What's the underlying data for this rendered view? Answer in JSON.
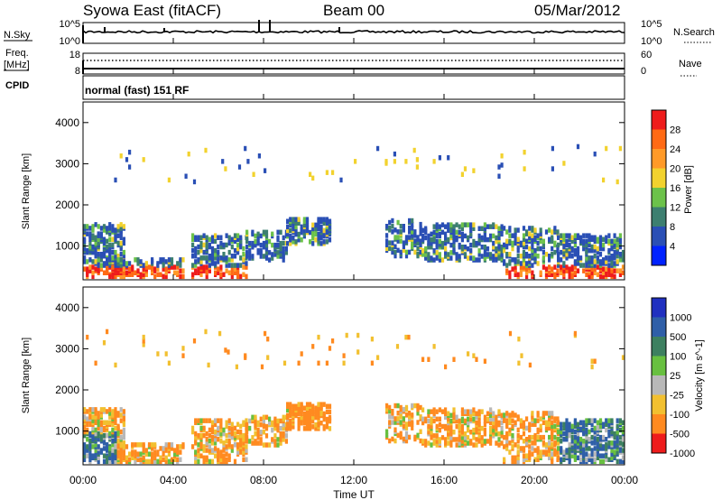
{
  "header": {
    "station": "Syowa East (fitACF)",
    "beam": "Beam 00",
    "date": "05/Mar/2012"
  },
  "status_panels": {
    "nsky_label": "N.Sky",
    "nsky_top": "10^5",
    "nsky_bottom": "10^0",
    "nsearch_label": "N.Search",
    "nsearch_top": "10^5",
    "nsearch_bottom": "10^0",
    "freq_label_1": "Freq.",
    "freq_label_2": "[MHz]",
    "freq_top": "18",
    "freq_bottom": "8",
    "nave_label": "Nave",
    "nave_top": "60",
    "nave_bottom": "0",
    "cpid_label": "CPID",
    "cpid_text": "normal (fast) 151 RF"
  },
  "chart_data": [
    {
      "type": "heatmap",
      "panel": "power",
      "ylabel": "Slant Range [km]",
      "yticks": [
        "1000",
        "2000",
        "3000",
        "4000"
      ],
      "ylim": [
        180,
        4500
      ],
      "colorbar_label": "Power [dB]",
      "colorbar_ticks": [
        "4",
        "8",
        "12",
        "16",
        "20",
        "24",
        "28"
      ],
      "colors": [
        "#0022ff",
        "#2a4fb5",
        "#3d7f70",
        "#6cc24a",
        "#f2d22e",
        "#ff9a28",
        "#ff6a14",
        "#ee1c1c"
      ]
    },
    {
      "type": "heatmap",
      "panel": "velocity",
      "ylabel": "Slant Range [km]",
      "yticks": [
        "1000",
        "2000",
        "3000",
        "4000"
      ],
      "ylim": [
        180,
        4500
      ],
      "colorbar_label": "Velocity [m s^-1]",
      "colorbar_ticks": [
        "1000",
        "500",
        "100",
        "25",
        "-25",
        "-100",
        "-500",
        "-1000"
      ],
      "colors": [
        "#2030c0",
        "#2f5fa8",
        "#3d8060",
        "#68c040",
        "#b8b8b8",
        "#f2c030",
        "#ff8a20",
        "#ee1c1c"
      ]
    }
  ],
  "x_axis": {
    "ticks": [
      "00:00",
      "04:00",
      "08:00",
      "12:00",
      "16:00",
      "20:00",
      "00:00"
    ],
    "label": "Time UT"
  }
}
